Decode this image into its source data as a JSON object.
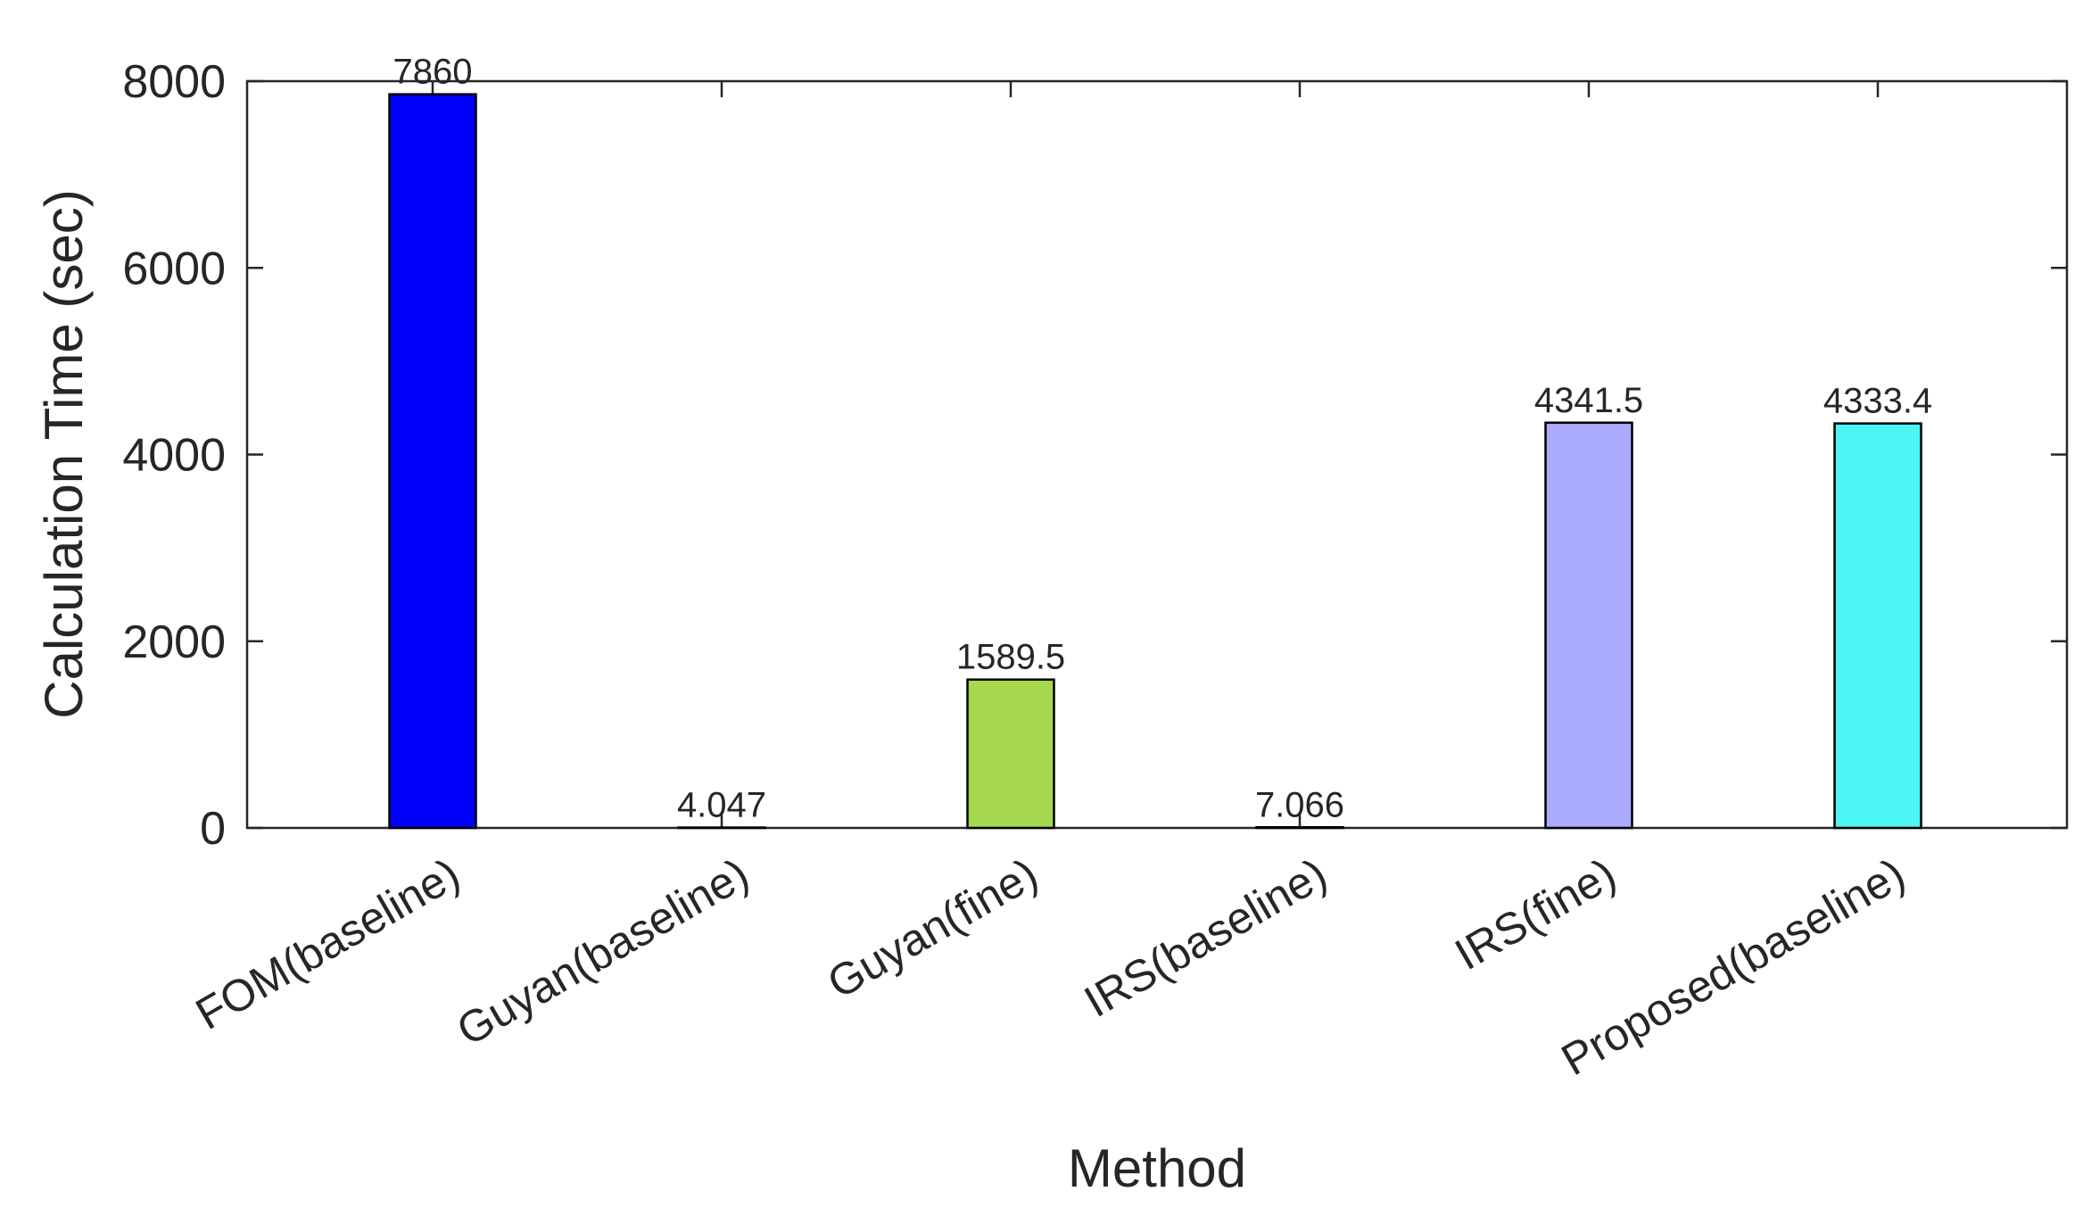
{
  "chart_data": {
    "type": "bar",
    "title": "",
    "xlabel": "Method",
    "ylabel": "Calculation Time (sec)",
    "categories": [
      "FOM(baseline)",
      "Guyan(baseline)",
      "Guyan(fine)",
      "IRS(baseline)",
      "IRS(fine)",
      "Proposed(baseline)"
    ],
    "values": [
      7860,
      4.047,
      1589.5,
      7.066,
      4341.5,
      4333.4
    ],
    "data_labels": [
      "7860",
      "4.047",
      "1589.5",
      "7.066",
      "4341.5",
      "4333.4"
    ],
    "bar_colors": [
      "#0000ff",
      "#0000ff",
      "#a5d84f",
      "#a5d84f",
      "#aaaaff",
      "#4df4f4"
    ],
    "ylim": [
      0,
      8000
    ],
    "yticks": [
      0,
      2000,
      4000,
      6000,
      8000
    ],
    "ytick_labels": [
      "0",
      "2000",
      "4000",
      "6000",
      "8000"
    ],
    "grid": false,
    "legend": "none"
  }
}
